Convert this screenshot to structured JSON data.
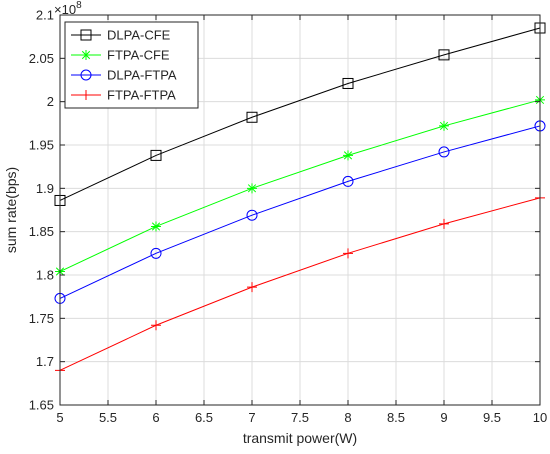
{
  "chart_data": {
    "type": "line",
    "xlabel": "transmit power(W)",
    "ylabel": "sum rate(bps)",
    "y_multiplier_label": "×10",
    "y_multiplier_exponent": "8",
    "xlim": [
      5,
      10
    ],
    "ylim": [
      1.65,
      2.1
    ],
    "x_ticks": [
      5,
      5.5,
      6,
      6.5,
      7,
      7.5,
      8,
      8.5,
      9,
      9.5,
      10
    ],
    "x_tick_labels": [
      "5",
      "5.5",
      "6",
      "6.5",
      "7",
      "7.5",
      "8",
      "8.5",
      "9",
      "9.5",
      "10"
    ],
    "y_ticks": [
      1.65,
      1.7,
      1.75,
      1.8,
      1.85,
      1.9,
      1.95,
      2.0,
      2.05,
      2.1
    ],
    "y_tick_labels": [
      "1.65",
      "1.7",
      "1.75",
      "1.8",
      "1.85",
      "1.9",
      "1.95",
      "2",
      "2.05",
      "2.1"
    ],
    "grid": true,
    "legend_position": "top-left",
    "x": [
      5,
      6,
      7,
      8,
      9,
      10
    ],
    "series": [
      {
        "name": "DLPA-CFE",
        "color": "#000000",
        "marker": "square",
        "values": [
          1.886,
          1.938,
          1.982,
          2.021,
          2.054,
          2.085
        ]
      },
      {
        "name": "FTPA-CFE",
        "color": "#00ff00",
        "marker": "asterisk",
        "values": [
          1.804,
          1.856,
          1.9,
          1.938,
          1.972,
          2.002
        ]
      },
      {
        "name": "DLPA-FTPA",
        "color": "#0000ff",
        "marker": "circle",
        "values": [
          1.773,
          1.825,
          1.869,
          1.908,
          1.942,
          1.972
        ]
      },
      {
        "name": "FTPA-FTPA",
        "color": "#ff0000",
        "marker": "plus",
        "values": [
          1.69,
          1.742,
          1.786,
          1.825,
          1.859,
          1.889
        ]
      }
    ]
  }
}
